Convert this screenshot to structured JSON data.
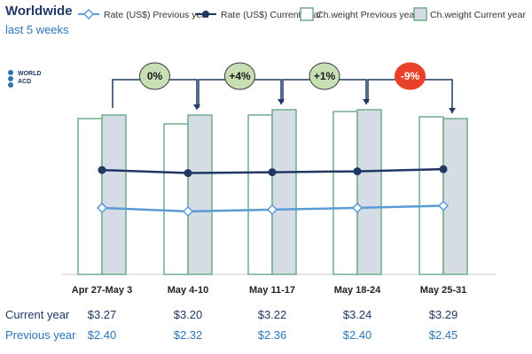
{
  "header": {
    "title": "Worldwide",
    "subtitle": "last 5 weeks",
    "logo_text": [
      "WORLD",
      "ACD"
    ]
  },
  "colors": {
    "rate_prev": "#5b9bd5",
    "rate_cur": "#1f3864",
    "weight_prev_fill": "#ffffff",
    "weight_prev_stroke": "#70ad8c",
    "weight_cur_fill": "#d6dce5",
    "weight_cur_stroke": "#70ad8c",
    "badge_green": "#c6e0b4",
    "badge_red": "#e8402a"
  },
  "chart_data": {
    "type": "bar",
    "categories": [
      "Apr 27-May 3",
      "May 4-10",
      "May 11-17",
      "May 18-24",
      "May 25-31"
    ],
    "legend_position": "top",
    "series": [
      {
        "name": "Rate (US$) Previous year",
        "kind": "line",
        "marker": "diamond",
        "values": [
          2.4,
          2.32,
          2.36,
          2.4,
          2.45
        ]
      },
      {
        "name": "Rate (US$) Current year",
        "kind": "line",
        "marker": "circle",
        "values": [
          3.27,
          3.2,
          3.22,
          3.24,
          3.29
        ]
      },
      {
        "name": "Ch.weight Previous year",
        "kind": "bar",
        "values": [
          88,
          85,
          90,
          92,
          89
        ]
      },
      {
        "name": "Ch.weight Current year",
        "kind": "bar",
        "values": [
          90,
          90,
          93,
          93,
          88
        ]
      }
    ],
    "changes": [
      "0%",
      "+4%",
      "+1%",
      "-9%"
    ],
    "rate_axis_range": [
      0,
      5
    ],
    "weight_axis_range": [
      0,
      100
    ]
  },
  "table": {
    "rows": [
      {
        "label": "Current year",
        "values": [
          "$3.27",
          "$3.20",
          "$3.22",
          "$3.24",
          "$3.29"
        ]
      },
      {
        "label": "Previous year",
        "values": [
          "$2.40",
          "$2.32",
          "$2.36",
          "$2.40",
          "$2.45"
        ]
      }
    ]
  }
}
